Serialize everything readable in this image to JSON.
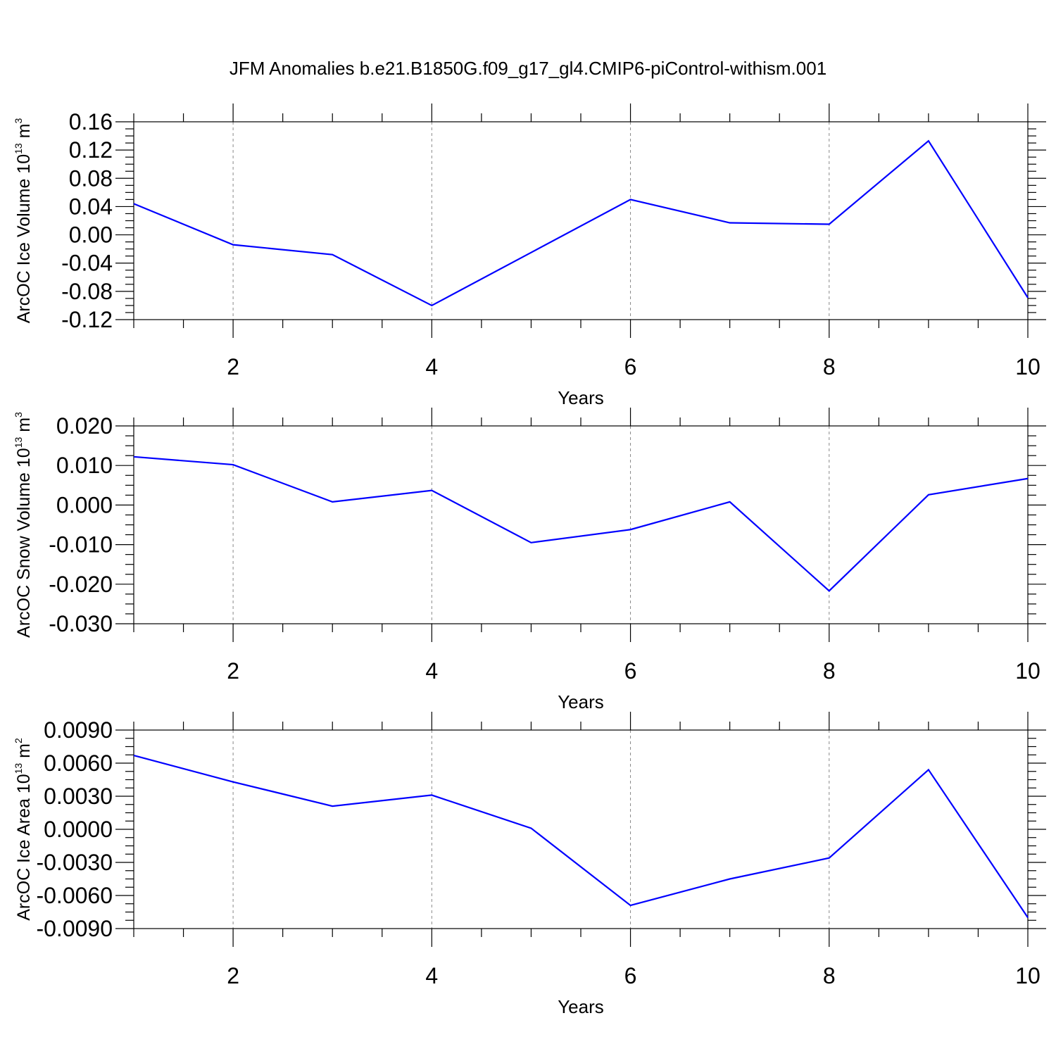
{
  "title": "JFM Anomalies b.e21.B1850G.f09_g17_gl4.CMIP6-piControl-withism.001",
  "chart_data": [
    {
      "type": "line",
      "xlabel": "Years",
      "ylabel_main": "ArcOC Ice Volume 10",
      "ylabel_exp": "13",
      "ylabel_unit": " m",
      "ylabel_unit_exp": "3",
      "x": [
        1,
        2,
        3,
        4,
        5,
        6,
        7,
        8,
        9,
        10
      ],
      "values": [
        0.044,
        -0.014,
        -0.028,
        -0.1,
        -0.025,
        0.05,
        0.017,
        0.015,
        0.133,
        -0.089
      ],
      "xlim": [
        1,
        10
      ],
      "ylim": [
        -0.12,
        0.16
      ],
      "yticks": [
        -0.12,
        -0.08,
        -0.04,
        0.0,
        0.04,
        0.08,
        0.12,
        0.16
      ],
      "ytick_labels": [
        "-0.12",
        "-0.08",
        "-0.04",
        "0.00",
        "0.04",
        "0.08",
        "0.12",
        "0.16"
      ],
      "xticks": [
        2,
        4,
        6,
        8,
        10
      ],
      "xtick_labels": [
        "2",
        "4",
        "6",
        "8",
        "10"
      ],
      "grid": "x-dashed",
      "color": "#0000ff"
    },
    {
      "type": "line",
      "xlabel": "Years",
      "ylabel_main": "ArcOC Snow Volume 10",
      "ylabel_exp": "13",
      "ylabel_unit": " m",
      "ylabel_unit_exp": "3",
      "x": [
        1,
        2,
        3,
        4,
        5,
        6,
        7,
        8,
        9,
        10
      ],
      "values": [
        0.0122,
        0.0102,
        0.0008,
        0.0037,
        -0.0095,
        -0.0062,
        0.0008,
        -0.0217,
        0.0026,
        0.0067
      ],
      "xlim": [
        1,
        10
      ],
      "ylim": [
        -0.03,
        0.02
      ],
      "yticks": [
        -0.03,
        -0.02,
        -0.01,
        0.0,
        0.01,
        0.02
      ],
      "ytick_labels": [
        "-0.030",
        "-0.020",
        "-0.010",
        "0.000",
        "0.010",
        "0.020"
      ],
      "xticks": [
        2,
        4,
        6,
        8,
        10
      ],
      "xtick_labels": [
        "2",
        "4",
        "6",
        "8",
        "10"
      ],
      "grid": "x-dashed",
      "color": "#0000ff"
    },
    {
      "type": "line",
      "xlabel": "Years",
      "ylabel_main": "ArcOC Ice Area 10",
      "ylabel_exp": "13",
      "ylabel_unit": " m",
      "ylabel_unit_exp": "2",
      "x": [
        1,
        2,
        3,
        4,
        5,
        6,
        7,
        8,
        9,
        10
      ],
      "values": [
        0.0067,
        0.0043,
        0.0021,
        0.0031,
        0.0001,
        -0.0069,
        -0.0045,
        -0.0026,
        0.0054,
        -0.008
      ],
      "xlim": [
        1,
        10
      ],
      "ylim": [
        -0.009,
        0.009
      ],
      "yticks": [
        -0.009,
        -0.006,
        -0.003,
        0.0,
        0.003,
        0.006,
        0.009
      ],
      "ytick_labels": [
        "-0.0090",
        "-0.0060",
        "-0.0030",
        "0.0000",
        "0.0030",
        "0.0060",
        "0.0090"
      ],
      "xticks": [
        2,
        4,
        6,
        8,
        10
      ],
      "xtick_labels": [
        "2",
        "4",
        "6",
        "8",
        "10"
      ],
      "grid": "x-dashed",
      "color": "#0000ff"
    }
  ]
}
